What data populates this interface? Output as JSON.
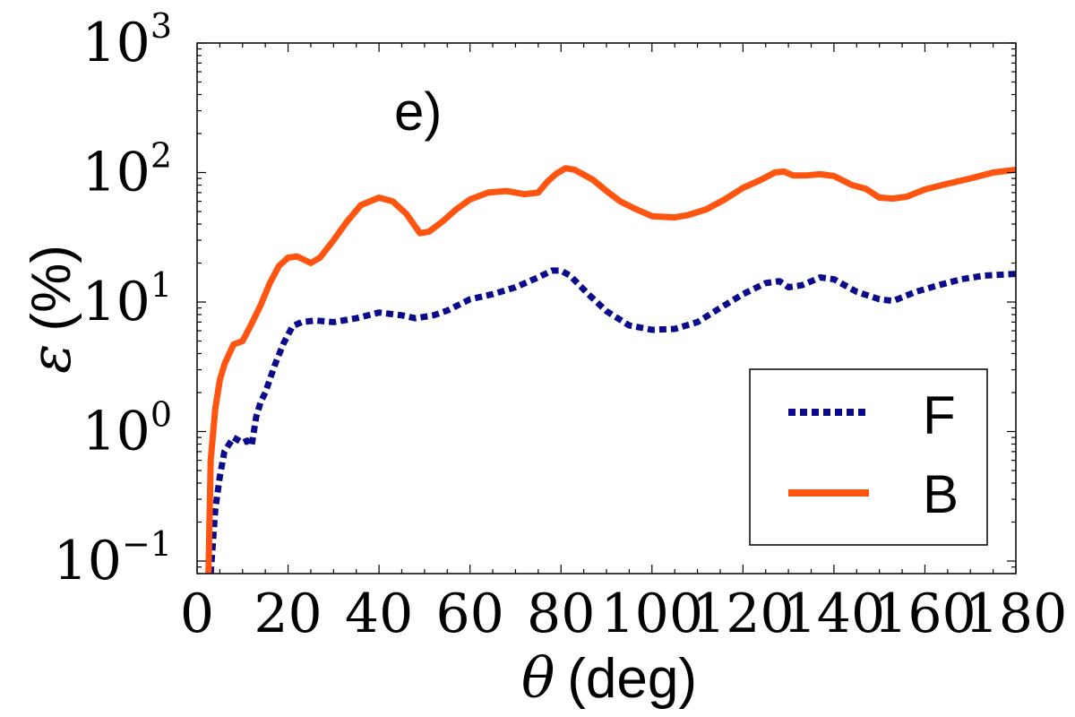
{
  "chart_data": {
    "type": "line",
    "panel_label": "e)",
    "xlabel": {
      "symbol": "θ",
      "unit": "(deg)"
    },
    "ylabel": {
      "symbol": "ε",
      "unit": "(%)"
    },
    "xlim": [
      0,
      180
    ],
    "ylim": [
      0.08,
      1000
    ],
    "yscale": "log",
    "grid": false,
    "legend_position": "bottom-right",
    "x_ticks": [
      "0",
      "20",
      "40",
      "60",
      "80",
      "100",
      "120",
      "140",
      "160",
      "180"
    ],
    "y_ticks": [
      {
        "base": "10",
        "exponent": "−1"
      },
      {
        "base": "10",
        "exponent": "0"
      },
      {
        "base": "10",
        "exponent": "1"
      },
      {
        "base": "10",
        "exponent": "2"
      },
      {
        "base": "10",
        "exponent": "3"
      }
    ],
    "series": [
      {
        "name": "F",
        "color": "#0a0a8a",
        "style": "dotted",
        "points": [
          [
            3,
            0.08
          ],
          [
            4,
            0.25
          ],
          [
            5,
            0.45
          ],
          [
            6,
            0.7
          ],
          [
            8,
            0.9
          ],
          [
            10,
            0.82
          ],
          [
            11,
            0.85
          ],
          [
            12,
            0.78
          ],
          [
            13,
            1.3
          ],
          [
            14,
            1.7
          ],
          [
            15,
            2.0
          ],
          [
            17,
            3.2
          ],
          [
            19,
            4.8
          ],
          [
            21,
            6.5
          ],
          [
            23,
            7.0
          ],
          [
            26,
            7.2
          ],
          [
            30,
            7.0
          ],
          [
            35,
            7.5
          ],
          [
            40,
            8.3
          ],
          [
            45,
            7.9
          ],
          [
            48,
            7.5
          ],
          [
            52,
            7.9
          ],
          [
            55,
            8.6
          ],
          [
            60,
            10.5
          ],
          [
            65,
            11.5
          ],
          [
            70,
            13.0
          ],
          [
            75,
            15.5
          ],
          [
            78,
            17.5
          ],
          [
            80,
            17.5
          ],
          [
            82,
            16.0
          ],
          [
            86,
            11.5
          ],
          [
            90,
            8.5
          ],
          [
            95,
            6.6
          ],
          [
            100,
            6.1
          ],
          [
            105,
            6.2
          ],
          [
            110,
            7.0
          ],
          [
            115,
            9.0
          ],
          [
            120,
            11.5
          ],
          [
            125,
            14.0
          ],
          [
            128,
            14.5
          ],
          [
            130,
            13.0
          ],
          [
            133,
            13.5
          ],
          [
            137,
            15.5
          ],
          [
            140,
            15.0
          ],
          [
            145,
            12.0
          ],
          [
            150,
            10.5
          ],
          [
            153,
            10.2
          ],
          [
            158,
            12.0
          ],
          [
            163,
            13.5
          ],
          [
            168,
            15.0
          ],
          [
            173,
            16.0
          ],
          [
            180,
            16.5
          ]
        ]
      },
      {
        "name": "B",
        "color": "#ff5511",
        "style": "solid",
        "points": [
          [
            2.5,
            0.08
          ],
          [
            3,
            0.6
          ],
          [
            4,
            1.5
          ],
          [
            5,
            2.5
          ],
          [
            6,
            3.3
          ],
          [
            8,
            4.7
          ],
          [
            10,
            5.0
          ],
          [
            12,
            6.8
          ],
          [
            14,
            9.5
          ],
          [
            16,
            14.0
          ],
          [
            18,
            19.0
          ],
          [
            20,
            22.0
          ],
          [
            22,
            22.5
          ],
          [
            25,
            20.0
          ],
          [
            27,
            22.0
          ],
          [
            30,
            30.0
          ],
          [
            33,
            42.0
          ],
          [
            36,
            56.0
          ],
          [
            40,
            64.0
          ],
          [
            43,
            60.0
          ],
          [
            46,
            48.0
          ],
          [
            49,
            34.0
          ],
          [
            51,
            35.0
          ],
          [
            54,
            42.0
          ],
          [
            57,
            52.0
          ],
          [
            60,
            62.0
          ],
          [
            64,
            70.0
          ],
          [
            68,
            72.0
          ],
          [
            72,
            68.0
          ],
          [
            75,
            70.0
          ],
          [
            77,
            85.0
          ],
          [
            79,
            98.0
          ],
          [
            81,
            108.0
          ],
          [
            83,
            105.0
          ],
          [
            87,
            88.0
          ],
          [
            90,
            72.0
          ],
          [
            93,
            60.0
          ],
          [
            96,
            53.0
          ],
          [
            100,
            46.0
          ],
          [
            105,
            45.0
          ],
          [
            108,
            47.0
          ],
          [
            112,
            52.0
          ],
          [
            116,
            62.0
          ],
          [
            120,
            76.0
          ],
          [
            124,
            88.0
          ],
          [
            127,
            100.0
          ],
          [
            129,
            102.0
          ],
          [
            131,
            95.0
          ],
          [
            134,
            95.0
          ],
          [
            137,
            97.0
          ],
          [
            140,
            94.0
          ],
          [
            144,
            80.0
          ],
          [
            147,
            75.0
          ],
          [
            150,
            64.0
          ],
          [
            153,
            63.0
          ],
          [
            156,
            65.0
          ],
          [
            160,
            74.0
          ],
          [
            165,
            82.0
          ],
          [
            170,
            90.0
          ],
          [
            175,
            100.0
          ],
          [
            180,
            105.0
          ]
        ]
      }
    ]
  }
}
